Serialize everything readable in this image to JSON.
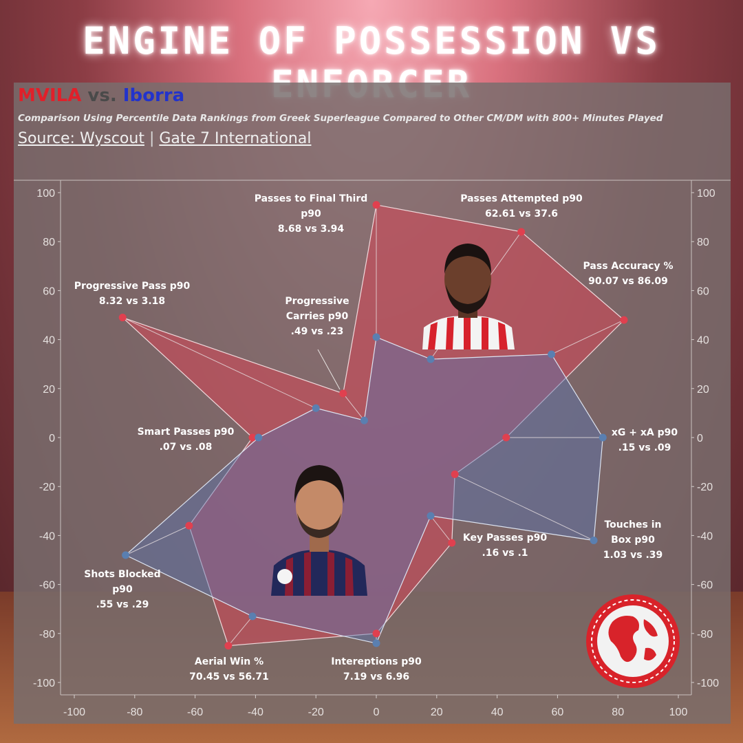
{
  "header": {
    "title": "ENGINE OF POSSESSION VS ENFORCER",
    "name_a": "MVILA",
    "vs": "vs.",
    "name_b": "Iborra",
    "subtitle": "Comparison Using Percentile Data Rankings from Greek Superleague Compared to Other CM/DM with 800+ Minutes Played",
    "source_label": "Source: Wyscout",
    "separator": "|",
    "source_org": "Gate 7 International"
  },
  "colors": {
    "series_a": "#e0404f",
    "series_b": "#5a7fb0",
    "panel": "#7a706e"
  },
  "icons": {
    "player_a_photo": "player-photo-mvila",
    "player_b_photo": "player-photo-iborra",
    "logo": "gate7-international-logo"
  },
  "chart_data": {
    "type": "scatter",
    "xlim": [
      -100,
      100
    ],
    "ylim": [
      -100,
      100
    ],
    "xticks": [
      -100,
      -80,
      -60,
      -40,
      -20,
      0,
      20,
      40,
      60,
      80,
      100
    ],
    "yticks": [
      100,
      80,
      60,
      40,
      20,
      0,
      -20,
      -40,
      -60,
      -80,
      -100
    ],
    "grid": false,
    "legend": "none",
    "series": [
      {
        "name": "MVILA",
        "color": "#e0404f",
        "points": [
          {
            "x": 0,
            "y": 95
          },
          {
            "x": 48,
            "y": 84
          },
          {
            "x": 82,
            "y": 48
          },
          {
            "x": 43,
            "y": 0
          },
          {
            "x": 26,
            "y": -15
          },
          {
            "x": 25,
            "y": -43
          },
          {
            "x": 0,
            "y": -80
          },
          {
            "x": -49,
            "y": -85
          },
          {
            "x": -62,
            "y": -36
          },
          {
            "x": -41,
            "y": 0
          },
          {
            "x": -84,
            "y": 49
          },
          {
            "x": -11,
            "y": 18
          }
        ]
      },
      {
        "name": "Iborra",
        "color": "#5a7fb0",
        "points": [
          {
            "x": 0,
            "y": 41
          },
          {
            "x": 18,
            "y": 32
          },
          {
            "x": 58,
            "y": 34
          },
          {
            "x": 75,
            "y": 0
          },
          {
            "x": 72,
            "y": -42
          },
          {
            "x": 18,
            "y": -32
          },
          {
            "x": 0,
            "y": -84
          },
          {
            "x": -41,
            "y": -73
          },
          {
            "x": -83,
            "y": -48
          },
          {
            "x": -39,
            "y": 0
          },
          {
            "x": -20,
            "y": 12
          },
          {
            "x": -4,
            "y": 7
          }
        ]
      }
    ],
    "annotations": [
      {
        "title": "Passes to Final Third\np90",
        "values": "8.68 vs 3.94"
      },
      {
        "title": "Passes Attempted p90",
        "values": "62.61  vs 37.6"
      },
      {
        "title": "Pass Accuracy %",
        "values": "90.07 vs 86.09"
      },
      {
        "title": "xG + xA p90",
        "values": ".15 vs .09"
      },
      {
        "title": "Touches in\nBox p90",
        "values": "1.03 vs .39"
      },
      {
        "title": "Key Passes p90",
        "values": ".16 vs .1"
      },
      {
        "title": "Intereptions p90",
        "values": "7.19 vs 6.96"
      },
      {
        "title": "Aerial Win %",
        "values": "70.45 vs 56.71"
      },
      {
        "title": "Shots Blocked\np90",
        "values": ".55 vs .29"
      },
      {
        "title": "Smart Passes p90",
        "values": ".07 vs .08"
      },
      {
        "title": "Progressive Pass p90",
        "values": "8.32 vs 3.18"
      },
      {
        "title": "Progressive\nCarries p90",
        "values": ".49 vs .23"
      }
    ]
  }
}
